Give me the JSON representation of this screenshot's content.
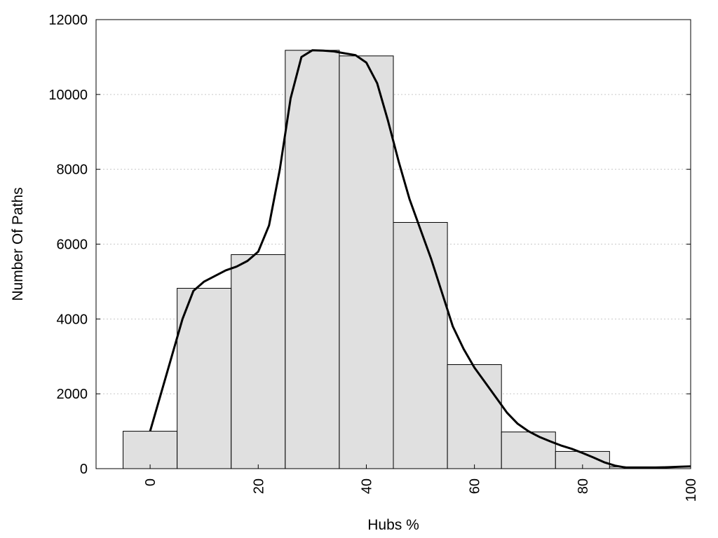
{
  "chart_data": {
    "type": "bar",
    "title": "",
    "xlabel": "Hubs %",
    "ylabel": "Number Of Paths",
    "xlim": [
      -10,
      100
    ],
    "ylim": [
      0,
      12000
    ],
    "xticks": [
      0,
      20,
      40,
      60,
      80,
      100
    ],
    "yticks": [
      0,
      2000,
      4000,
      6000,
      8000,
      10000,
      12000
    ],
    "grid": "horizontal-dotted",
    "bin_width": 10,
    "bins": [
      {
        "center": 0,
        "value": 1000
      },
      {
        "center": 10,
        "value": 4820
      },
      {
        "center": 20,
        "value": 5720
      },
      {
        "center": 30,
        "value": 11180
      },
      {
        "center": 40,
        "value": 11030
      },
      {
        "center": 50,
        "value": 6580
      },
      {
        "center": 60,
        "value": 2780
      },
      {
        "center": 70,
        "value": 980
      },
      {
        "center": 80,
        "value": 460
      },
      {
        "center": 90,
        "value": 50
      }
    ],
    "series": [
      {
        "type": "line",
        "x": [
          0,
          2,
          4,
          6,
          8,
          10,
          12,
          14,
          16,
          18,
          20,
          22,
          24,
          26,
          28,
          30,
          32,
          34,
          36,
          38,
          40,
          42,
          44,
          46,
          48,
          50,
          52,
          54,
          56,
          58,
          60,
          62,
          64,
          66,
          68,
          70,
          72,
          74,
          76,
          78,
          80,
          82,
          84,
          86,
          88,
          90,
          92,
          94,
          96,
          98,
          100
        ],
        "values": [
          1000,
          2000,
          3000,
          4000,
          4750,
          5000,
          5150,
          5300,
          5400,
          5550,
          5800,
          6500,
          8000,
          9900,
          11000,
          11180,
          11170,
          11150,
          11100,
          11050,
          10850,
          10300,
          9300,
          8200,
          7200,
          6400,
          5600,
          4700,
          3800,
          3200,
          2700,
          2300,
          1900,
          1500,
          1200,
          1000,
          850,
          730,
          620,
          530,
          420,
          300,
          170,
          80,
          30,
          20,
          20,
          30,
          40,
          50,
          60
        ]
      }
    ]
  }
}
